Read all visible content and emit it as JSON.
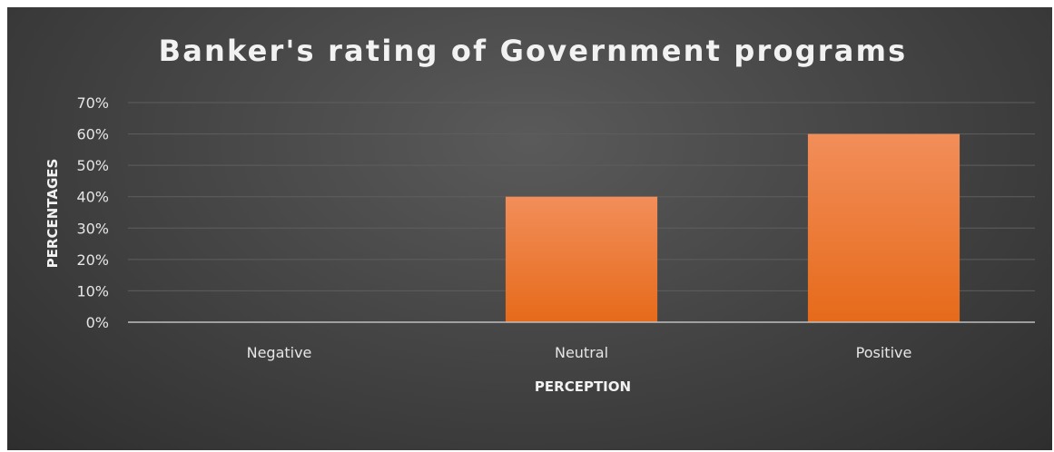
{
  "chart_data": {
    "type": "bar",
    "title": "Banker's rating of Government programs",
    "xlabel": "PERCEPTION",
    "ylabel": "PERCENTAGES",
    "categories": [
      "Negative",
      "Neutral",
      "Positive"
    ],
    "values": [
      0,
      40,
      60
    ],
    "y_tick_labels": [
      "0%",
      "10%",
      "20%",
      "30%",
      "40%",
      "50%",
      "60%",
      "70%"
    ],
    "ylim": [
      0,
      70
    ],
    "grid": true,
    "legend": "none",
    "colors": {
      "bar": "#ed7d31",
      "background": "#404040",
      "grid": "#5e5e5e",
      "text": "#e6e6e6"
    }
  }
}
